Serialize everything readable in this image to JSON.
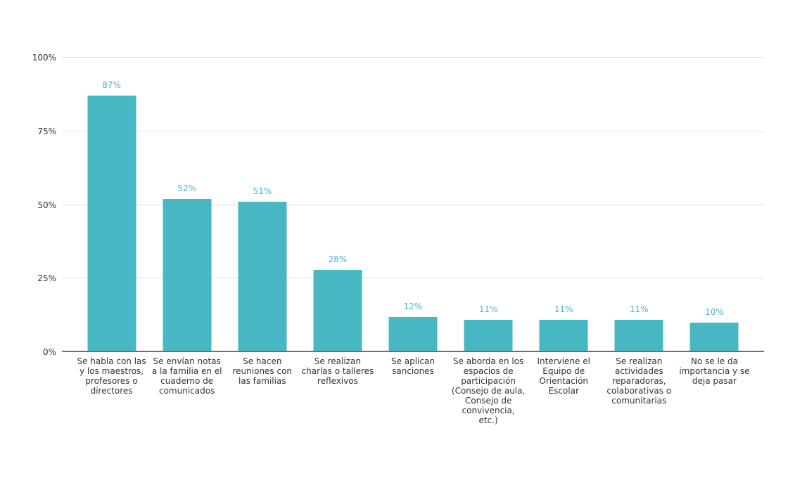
{
  "chart_data": {
    "type": "bar",
    "categories": [
      "Se habla con las y los maestros, profesores o directores",
      "Se envían notas a la familia en el cuaderno de comunicados",
      "Se hacen reuniones con las familias",
      "Se realizan charlas o talleres reflexivos",
      "Se aplican sanciones",
      "Se aborda en los espacios de participación (Consejo de aula, Consejo de convivencia, etc.)",
      "Interviene el Equipo de Orientación Escolar",
      "Se realizan actividades reparadoras, colaborativas o comunitarias",
      "No se le da importancia y se deja pasar"
    ],
    "values": [
      87,
      52,
      51,
      28,
      12,
      11,
      11,
      11,
      10
    ],
    "value_labels": [
      "87%",
      "52%",
      "51%",
      "28%",
      "12%",
      "11%",
      "11%",
      "11%",
      "10%"
    ],
    "title": "",
    "xlabel": "",
    "ylabel": "",
    "ylim": [
      0,
      100
    ],
    "ytick_values": [
      0,
      25,
      50,
      75,
      100
    ],
    "ytick_labels": [
      "0%",
      "25%",
      "50%",
      "75%",
      "100%"
    ],
    "grid": true,
    "legend": null,
    "colors": {
      "bar": "#47b8c3",
      "value_label": "#48b5ce",
      "axis_text": "#333333",
      "gridline": "#dddddd",
      "baseline": "#6e6e6e",
      "background": "#ffffff"
    }
  }
}
